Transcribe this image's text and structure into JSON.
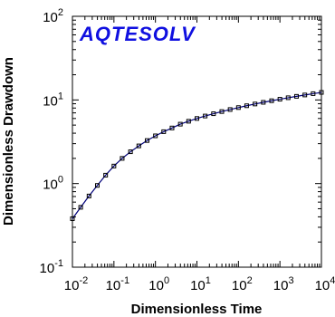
{
  "chart_data": {
    "type": "loglog",
    "annotation": "AQTESOLV",
    "x_label": "Dimensionless Time",
    "y_label": "Dimensionless Drawdown",
    "x_log": true,
    "y_log": true,
    "xlim": [
      0.01,
      10000
    ],
    "ylim": [
      0.1,
      100
    ],
    "xticks": [
      {
        "value": 0.01,
        "label": "10",
        "exponent": "-2"
      },
      {
        "value": 0.1,
        "label": "10",
        "exponent": "-1"
      },
      {
        "value": 1,
        "label": "10",
        "exponent": "0"
      },
      {
        "value": 10,
        "label": "10",
        "exponent": "1"
      },
      {
        "value": 100,
        "label": "10",
        "exponent": "2"
      },
      {
        "value": 1000,
        "label": "10",
        "exponent": "3"
      },
      {
        "value": 10000,
        "label": "10",
        "exponent": "4"
      }
    ],
    "yticks": [
      {
        "value": 0.1,
        "label": "10",
        "exponent": "-1"
      },
      {
        "value": 1,
        "label": "10",
        "exponent": "0"
      },
      {
        "value": 10,
        "label": "10",
        "exponent": "1"
      },
      {
        "value": 100,
        "label": "10",
        "exponent": "2"
      }
    ],
    "line_color": "#00007a",
    "marker_color": "#000000",
    "x": [
      0.01,
      0.0158,
      0.0251,
      0.0398,
      0.0631,
      0.1,
      0.158,
      0.251,
      0.398,
      0.631,
      1,
      1.58,
      2.51,
      3.98,
      6.31,
      10,
      15.8,
      25.1,
      39.8,
      63.1,
      100,
      158,
      251,
      398,
      631,
      1000,
      1580,
      2510,
      3980,
      6310,
      10000
    ],
    "values": [
      0.38,
      0.52,
      0.71,
      0.95,
      1.26,
      1.62,
      2.0,
      2.4,
      2.82,
      3.27,
      3.72,
      4.17,
      4.62,
      5.13,
      5.56,
      6.0,
      6.42,
      6.84,
      7.26,
      7.68,
      8.1,
      8.52,
      8.94,
      9.36,
      9.78,
      10.2,
      10.62,
      11.04,
      11.46,
      11.88,
      12.3
    ]
  }
}
